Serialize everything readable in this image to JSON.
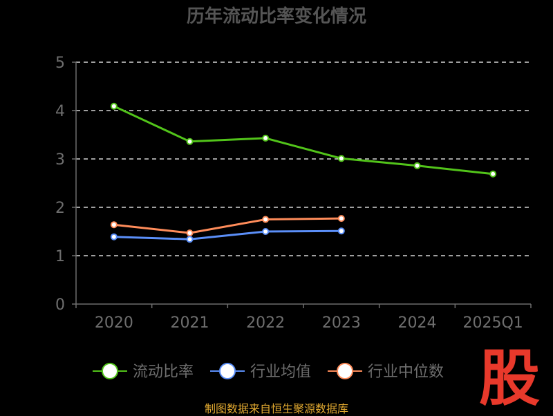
{
  "title": "历年流动比率变化情况",
  "source_note": "制图数据来自恒生聚源数据库",
  "watermark_char": "股",
  "colors": {
    "background": "#000000",
    "title": "#555555",
    "axis": "#6e6e6e",
    "tick_label": "#6e6e6e",
    "grid": "#ffffff",
    "legend_text": "#6e6e6e",
    "source_text": "#e0a830",
    "watermark": "#e8392b"
  },
  "chart_data": {
    "type": "line",
    "title": "历年流动比率变化情况",
    "categories": [
      "2020",
      "2021",
      "2022",
      "2023",
      "2024",
      "2025Q1"
    ],
    "ylim": [
      0,
      5
    ],
    "yticks": [
      0,
      1,
      2,
      3,
      4,
      5
    ],
    "grid": true,
    "grid_style": "dashed",
    "legend_position": "bottom",
    "series": [
      {
        "name": "流动比率",
        "color": "#52c41a",
        "values": [
          4.09,
          3.36,
          3.43,
          3.01,
          2.86,
          2.69
        ]
      },
      {
        "name": "行业均值",
        "color": "#5b8ff9",
        "values": [
          1.39,
          1.34,
          1.5,
          1.51,
          null,
          null
        ]
      },
      {
        "name": "行业中位数",
        "color": "#ff8c5a",
        "values": [
          1.64,
          1.47,
          1.75,
          1.77,
          null,
          null
        ]
      }
    ]
  }
}
